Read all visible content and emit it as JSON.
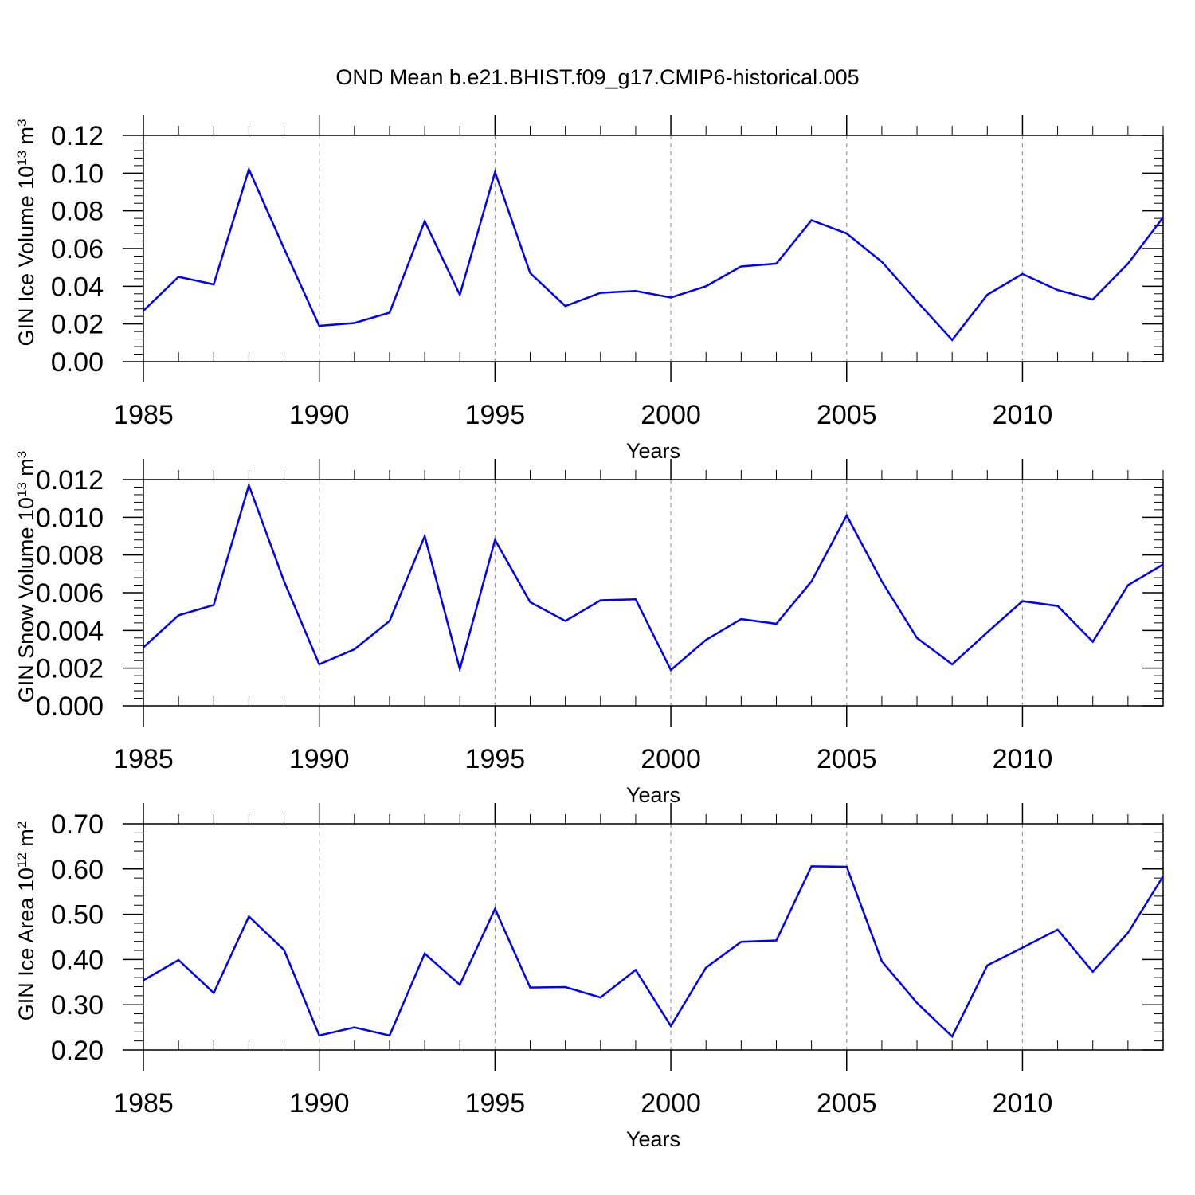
{
  "figure": {
    "title": "OND Mean b.e21.BHIST.f09_g17.CMIP6-historical.005"
  },
  "colors": {
    "line": "#0000ff",
    "axis": "#000000",
    "grid": "#9a9a9a",
    "background": "#ffffff"
  },
  "chart_data": [
    {
      "type": "line",
      "title": "OND Mean b.e21.BHIST.f09_g17.CMIP6-historical.005",
      "xlabel": "Years",
      "ylabel": {
        "prefix": "GIN Ice Volume 10",
        "exp": "13",
        "unit": " m",
        "unit_exp": "3"
      },
      "xlim": [
        1985,
        2014
      ],
      "ylim": [
        0,
        0.12
      ],
      "xticks": [
        "1985",
        "1990",
        "1995",
        "2000",
        "2005",
        "2010"
      ],
      "yticks": [
        "0.00",
        "0.02",
        "0.04",
        "0.06",
        "0.08",
        "0.10",
        "0.12"
      ],
      "grid": "vertical dashed at major x ticks",
      "series": [
        {
          "name": "GIN Ice Volume",
          "x": [
            1985,
            1986,
            1987,
            1988,
            1989,
            1990,
            1991,
            1992,
            1993,
            1994,
            1995,
            1996,
            1997,
            1998,
            1999,
            2000,
            2001,
            2002,
            2003,
            2004,
            2005,
            2006,
            2007,
            2008,
            2009,
            2010,
            2011,
            2012,
            2013,
            2014
          ],
          "values": [
            0.027,
            0.045,
            0.041,
            0.102,
            0.06,
            0.019,
            0.0205,
            0.026,
            0.0745,
            0.0355,
            0.1005,
            0.047,
            0.0295,
            0.0365,
            0.0375,
            0.034,
            0.04,
            0.0505,
            0.052,
            0.075,
            0.068,
            0.053,
            0.032,
            0.0115,
            0.0355,
            0.0465,
            0.038,
            0.033,
            0.052,
            0.0765
          ]
        }
      ]
    },
    {
      "type": "line",
      "xlabel": "Years",
      "ylabel": {
        "prefix": "GIN Snow Volume 10",
        "exp": "13",
        "unit": " m",
        "unit_exp": "3"
      },
      "xlim": [
        1985,
        2014
      ],
      "ylim": [
        0,
        0.012
      ],
      "xticks": [
        "1985",
        "1990",
        "1995",
        "2000",
        "2005",
        "2010"
      ],
      "yticks": [
        "0.000",
        "0.002",
        "0.004",
        "0.006",
        "0.008",
        "0.010",
        "0.012"
      ],
      "grid": "vertical dashed at major x ticks",
      "series": [
        {
          "name": "GIN Snow Volume",
          "x": [
            1985,
            1986,
            1987,
            1988,
            1989,
            1990,
            1991,
            1992,
            1993,
            1994,
            1995,
            1996,
            1997,
            1998,
            1999,
            2000,
            2001,
            2002,
            2003,
            2004,
            2005,
            2006,
            2007,
            2008,
            2009,
            2010,
            2011,
            2012,
            2013,
            2014
          ],
          "values": [
            0.0031,
            0.0048,
            0.00535,
            0.0117,
            0.0066,
            0.0022,
            0.003,
            0.0045,
            0.009,
            0.00195,
            0.0088,
            0.0055,
            0.0045,
            0.0056,
            0.00565,
            0.0019,
            0.0035,
            0.0046,
            0.00435,
            0.0066,
            0.0101,
            0.0066,
            0.0036,
            0.0022,
            0.0039,
            0.00555,
            0.0053,
            0.0034,
            0.0064,
            0.0075
          ]
        }
      ]
    },
    {
      "type": "line",
      "xlabel": "Years",
      "ylabel": {
        "prefix": "GIN Ice Area 10",
        "exp": "12",
        "unit": " m",
        "unit_exp": "2"
      },
      "xlim": [
        1985,
        2014
      ],
      "ylim": [
        0.2,
        0.7
      ],
      "xticks": [
        "1985",
        "1990",
        "1995",
        "2000",
        "2005",
        "2010"
      ],
      "yticks": [
        "0.20",
        "0.30",
        "0.40",
        "0.50",
        "0.60",
        "0.70"
      ],
      "grid": "vertical dashed at major x ticks",
      "series": [
        {
          "name": "GIN Ice Area",
          "x": [
            1985,
            1986,
            1987,
            1988,
            1989,
            1990,
            1991,
            1992,
            1993,
            1994,
            1995,
            1996,
            1997,
            1998,
            1999,
            2000,
            2001,
            2002,
            2003,
            2004,
            2005,
            2006,
            2007,
            2008,
            2009,
            2010,
            2011,
            2012,
            2013,
            2014
          ],
          "values": [
            0.354,
            0.399,
            0.326,
            0.495,
            0.421,
            0.232,
            0.25,
            0.232,
            0.413,
            0.344,
            0.512,
            0.338,
            0.339,
            0.316,
            0.377,
            0.253,
            0.382,
            0.439,
            0.442,
            0.606,
            0.605,
            0.396,
            0.304,
            0.23,
            0.387,
            0.426,
            0.466,
            0.373,
            0.459,
            0.584
          ]
        }
      ]
    }
  ]
}
